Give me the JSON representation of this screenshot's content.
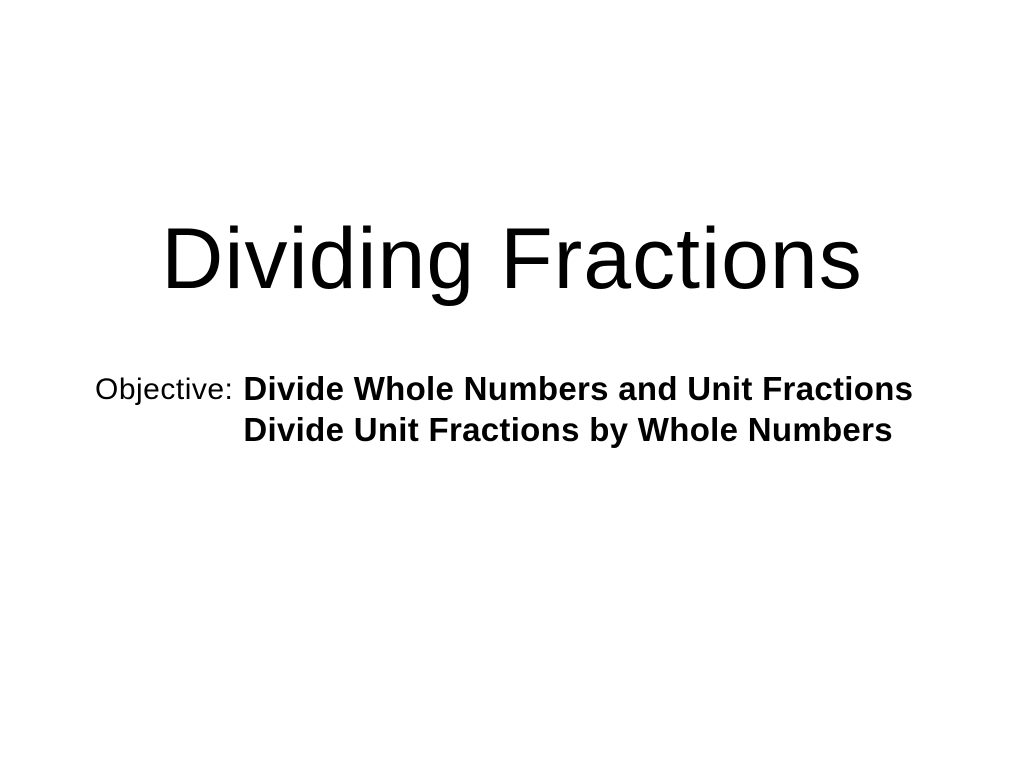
{
  "slide": {
    "title": "Dividing Fractions",
    "objective_label": "Objective:",
    "objective_line1": "Divide Whole Numbers and Unit Fractions",
    "objective_line2": "Divide Unit Fractions by Whole  Numbers"
  },
  "style": {
    "background_color": "#ffffff",
    "text_color": "#000000",
    "title_fontsize": 86,
    "title_fontweight": 400,
    "objective_label_fontsize": 30,
    "objective_text_fontsize": 33,
    "objective_text_fontweight": 700,
    "font_family": "Arial"
  }
}
